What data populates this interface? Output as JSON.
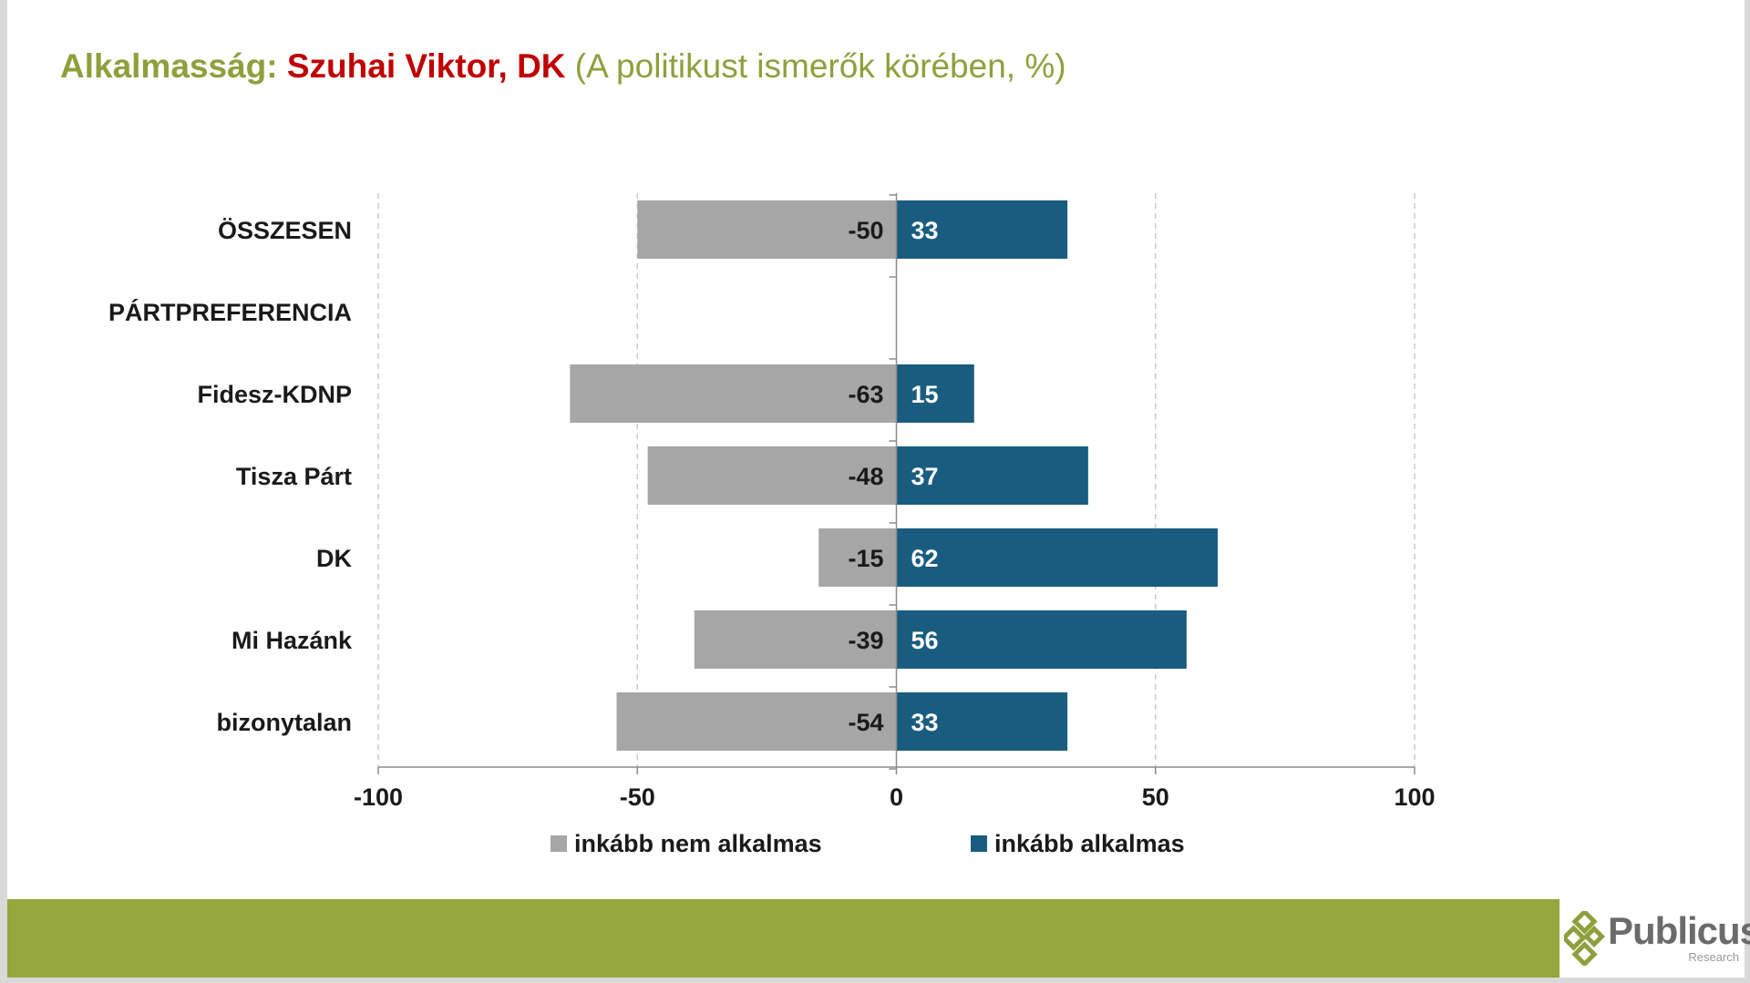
{
  "title": {
    "part1": "Alkalmasság: ",
    "part2": "Szuhai Viktor, DK",
    "part3": " (A politikust ismerők körében, %)",
    "color1": "#8ea03c",
    "color2": "#c00000",
    "color3": "#8ea03c"
  },
  "chart_data": {
    "type": "bar",
    "orientation": "horizontal",
    "diverging": true,
    "categories": [
      "ÖSSZESEN",
      "PÁRTPREFERENCIA",
      "Fidesz-KDNP",
      "Tisza Párt",
      "DK",
      "Mi Hazánk",
      "bizonytalan"
    ],
    "series": [
      {
        "name": "inkább nem alkalmas",
        "values": [
          -50,
          null,
          -63,
          -48,
          -15,
          -39,
          -54
        ],
        "color": "#a6a6a6"
      },
      {
        "name": "inkább alkalmas",
        "values": [
          33,
          null,
          15,
          37,
          62,
          56,
          33
        ],
        "color": "#1a5c80"
      }
    ],
    "xlim": [
      -100,
      100
    ],
    "xticks": [
      -100,
      -50,
      0,
      50,
      100
    ],
    "grid": true,
    "legend": "bottom"
  },
  "footer": {
    "bar_color": "#96a73d",
    "logo_text": "Publicus",
    "logo_sub": "Research",
    "logo_color": "#8ea03c"
  }
}
